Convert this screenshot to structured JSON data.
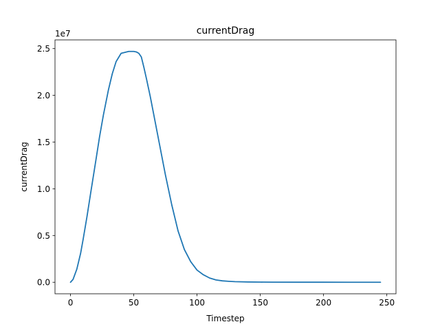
{
  "chart_data": {
    "type": "line",
    "title": "currentDrag",
    "xlabel": "Timestep",
    "ylabel": "currentDrag",
    "y_offset_text": "1e7",
    "xlim": [
      -12.25,
      257.25
    ],
    "ylim": [
      -1235000,
      25935000
    ],
    "x_ticks": [
      0,
      50,
      100,
      150,
      200,
      250
    ],
    "x_tick_labels": [
      "0",
      "50",
      "100",
      "150",
      "200",
      "250"
    ],
    "y_ticks": [
      0,
      5000000,
      10000000,
      15000000,
      20000000,
      25000000
    ],
    "y_tick_labels": [
      "0.0",
      "0.5",
      "1.0",
      "1.5",
      "2.0",
      "2.5"
    ],
    "grid": false,
    "series": [
      {
        "color": "#1f77b4",
        "x": [
          0,
          2,
          5,
          8,
          10,
          13,
          16,
          20,
          23,
          26,
          30,
          33,
          36,
          40,
          43,
          46,
          50,
          52,
          54,
          56,
          58,
          60,
          63,
          66,
          70,
          75,
          80,
          85,
          90,
          95,
          100,
          105,
          110,
          115,
          120,
          125,
          130,
          140,
          150,
          160,
          180,
          200,
          220,
          245
        ],
        "y": [
          0,
          300000,
          1400000,
          3100000,
          4600000,
          7000000,
          9600000,
          13000000,
          15600000,
          17900000,
          20600000,
          22300000,
          23600000,
          24500000,
          24600000,
          24700000,
          24700000,
          24650000,
          24500000,
          24100000,
          23000000,
          21800000,
          19900000,
          17800000,
          15000000,
          11500000,
          8300000,
          5500000,
          3500000,
          2200000,
          1300000,
          800000,
          450000,
          250000,
          150000,
          100000,
          60000,
          30000,
          15000,
          8000,
          3000,
          1000,
          500,
          0
        ]
      }
    ]
  }
}
